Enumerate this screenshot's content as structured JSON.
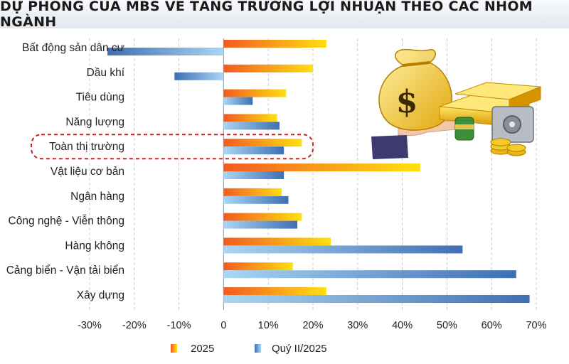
{
  "title": "DỰ PHÓNG CỦA MBS VỀ TĂNG TRƯỞNG LỢI NHUẬN THEO CÁC NHÓM NGÀNH",
  "colors": {
    "series_2025_start": "#f25a22",
    "series_2025_end": "#ffe012",
    "series_q2_start": "#3f6fb3",
    "series_q2_end": "#a9d6f2",
    "highlight": "#d41e24",
    "grid": "#b9c0c8"
  },
  "illustration": "money-bag-gold-bars-coins-icon",
  "chart_data": {
    "type": "bar",
    "orientation": "horizontal",
    "title": "DỰ PHÓNG CỦA MBS VỀ TĂNG TRƯỞNG LỢI NHUẬN THEO CÁC NHÓM NGÀNH",
    "categories": [
      "Bất động sản dân cư",
      "Dầu khí",
      "Tiêu dùng",
      "Năng lượng",
      "Toàn thị trường",
      "Vật liệu cơ bản",
      "Ngân hàng",
      "Công nghệ - Viễn thông",
      "Hàng không",
      "Cảng biển - Vận tải biển",
      "Xây dựng"
    ],
    "highlighted_category": "Toàn thị trường",
    "series": [
      {
        "name": "2025",
        "values": [
          23,
          20,
          14,
          12,
          17.5,
          44,
          13,
          17.5,
          24,
          15.5,
          23
        ]
      },
      {
        "name": "Quý II/2025",
        "values": [
          -26,
          -11,
          6.5,
          12.5,
          13.5,
          13.5,
          14.5,
          16.5,
          53.5,
          65.5,
          68.5
        ]
      }
    ],
    "xlim": [
      -30,
      70
    ],
    "x_ticks": [
      -30,
      -20,
      -10,
      0,
      10,
      20,
      30,
      40,
      50,
      60,
      70
    ],
    "x_tick_labels": [
      "-30%",
      "-20%",
      "-10%",
      "0",
      "10%",
      "20%",
      "30%",
      "40%",
      "50%",
      "60%",
      "70%"
    ],
    "grid": "vertical dashed",
    "legend_position": "bottom-center"
  }
}
